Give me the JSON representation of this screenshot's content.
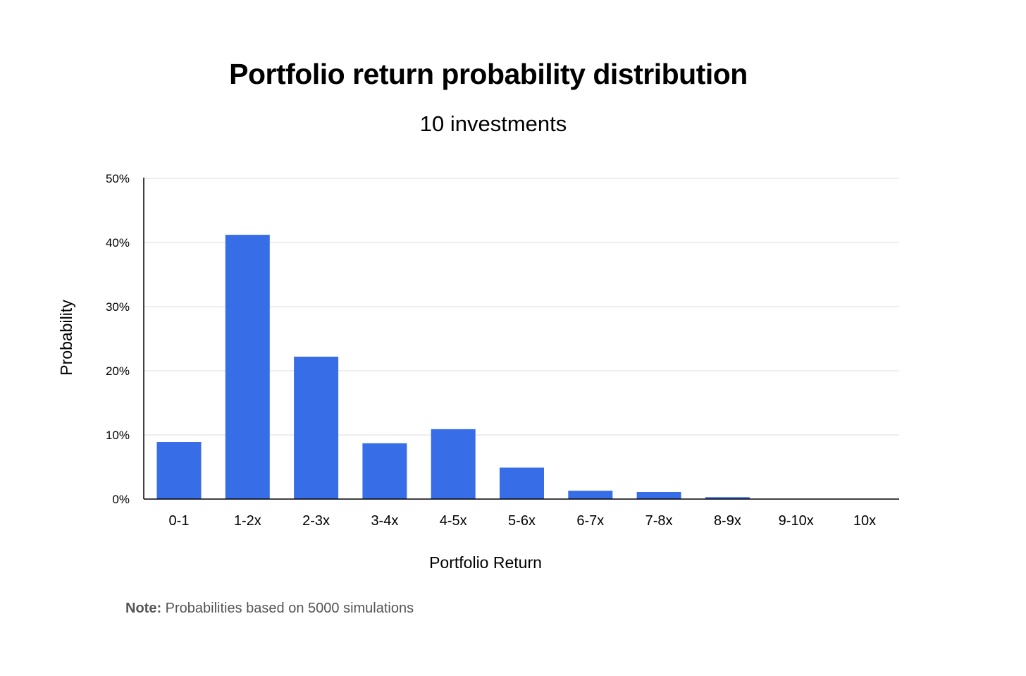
{
  "chart_data": {
    "type": "bar",
    "title": "Portfolio return probability distribution",
    "subtitle": "10 investments",
    "xlabel": "Portfolio Return",
    "ylabel": "Probability",
    "categories": [
      "0-1",
      "1-2x",
      "2-3x",
      "3-4x",
      "4-5x",
      "5-6x",
      "6-7x",
      "7-8x",
      "8-9x",
      "9-10x",
      "10x"
    ],
    "values": [
      8.9,
      41.2,
      22.2,
      8.7,
      10.9,
      4.9,
      1.3,
      1.1,
      0.3,
      0,
      0
    ],
    "ylim": [
      0,
      50
    ],
    "yticks": [
      0,
      10,
      20,
      30,
      40,
      50
    ],
    "ytick_labels": [
      "0%",
      "10%",
      "20%",
      "30%",
      "40%",
      "50%"
    ],
    "grid": true,
    "legend": "none",
    "bar_color": "#386DE8"
  },
  "note": {
    "label": "Note:",
    "text": " Probabilities based on 5000 simulations"
  }
}
